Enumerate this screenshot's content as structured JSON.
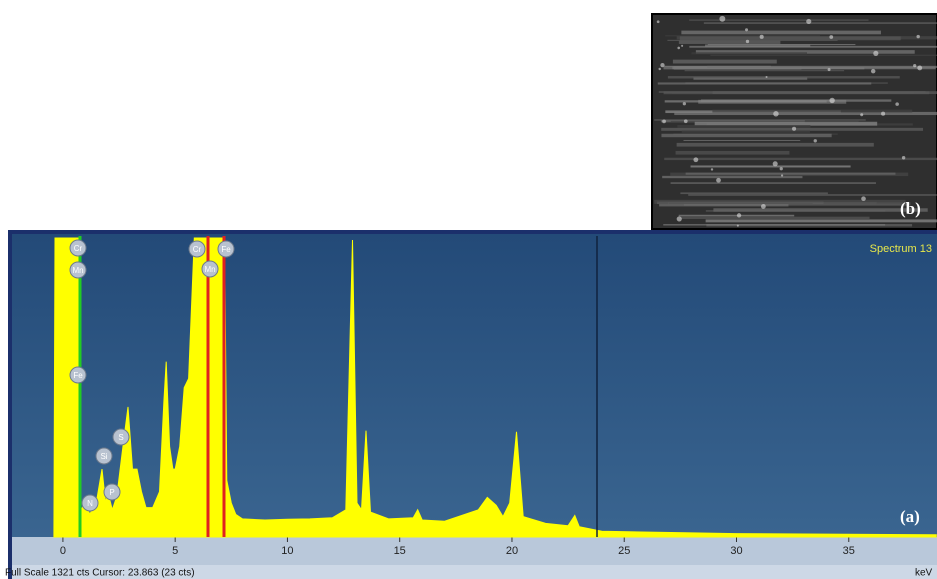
{
  "chart_data": {
    "type": "area",
    "color": "#ffff00",
    "spectrum_label": "Spectrum 13",
    "panel_a_label": "(a)",
    "panel_b_label": "(b)",
    "status_text": "Full Scale 1321 cts Cursor: 23.863 (23 cts)",
    "x_unit": "keV",
    "element_labels": [
      "Cr",
      "Mn",
      "Fe",
      "Si",
      "S",
      "P",
      "N",
      "Cr",
      "Fe",
      "Mn"
    ],
    "x": [
      -0.4,
      -0.35,
      0.75,
      0.8,
      1.0,
      1.2,
      1.5,
      1.74,
      1.9,
      2.0,
      2.2,
      2.4,
      2.7,
      2.9,
      3.1,
      3.3,
      3.5,
      3.7,
      4.0,
      4.3,
      4.5,
      4.6,
      4.75,
      4.9,
      5.0,
      5.2,
      5.4,
      5.6,
      5.85,
      7.2,
      7.3,
      7.5,
      7.7,
      8.0,
      9,
      10,
      11,
      12,
      12.6,
      12.9,
      13.1,
      13.3,
      13.5,
      13.7,
      14.5,
      15.6,
      15.8,
      16.0,
      17,
      18.5,
      18.9,
      19.3,
      19.6,
      19.9,
      20.2,
      20.5,
      21.5,
      22.5,
      22.8,
      23.0,
      24,
      30,
      38.9
    ],
    "values": [
      0,
      1321,
      1321,
      120,
      150,
      100,
      160,
      300,
      150,
      200,
      120,
      180,
      420,
      575,
      300,
      300,
      200,
      130,
      130,
      200,
      600,
      775,
      400,
      300,
      300,
      400,
      660,
      700,
      1321,
      1321,
      250,
      150,
      100,
      80,
      75,
      78,
      80,
      85,
      120,
      1312,
      150,
      120,
      470,
      110,
      80,
      85,
      120,
      75,
      70,
      120,
      175,
      140,
      90,
      150,
      465,
      90,
      60,
      50,
      95,
      45,
      25,
      15,
      10
    ],
    "xlim": [
      -2.0,
      38.93
    ],
    "ylim": [
      0,
      1321
    ],
    "xticks": [
      0,
      5,
      10,
      15,
      20,
      25,
      30,
      35
    ]
  }
}
